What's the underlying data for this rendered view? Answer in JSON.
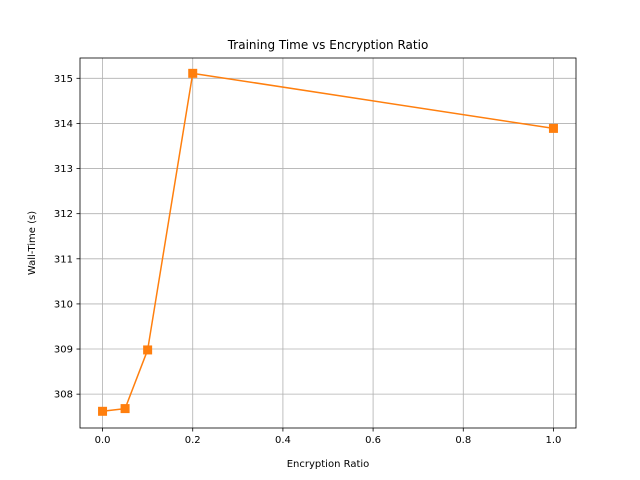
{
  "chart_data": {
    "type": "line",
    "title": "Training Time vs Encryption Ratio",
    "xlabel": "Encryption Ratio",
    "ylabel": "Wall-Time (s)",
    "xlim": [
      -0.05,
      1.05
    ],
    "ylim": [
      307.25,
      315.45
    ],
    "xticks": [
      0.0,
      0.2,
      0.4,
      0.6,
      0.8,
      1.0
    ],
    "xtick_labels": [
      "0.0",
      "0.2",
      "0.4",
      "0.6",
      "0.8",
      "1.0"
    ],
    "yticks": [
      308,
      309,
      310,
      311,
      312,
      313,
      314,
      315
    ],
    "ytick_labels": [
      "308",
      "309",
      "310",
      "311",
      "312",
      "313",
      "314",
      "315"
    ],
    "grid": true,
    "series": [
      {
        "color": "#ff7f0e",
        "marker": "square",
        "x": [
          0.0,
          0.05,
          0.1,
          0.2,
          1.0
        ],
        "y": [
          307.62,
          307.68,
          308.98,
          315.11,
          313.89
        ]
      }
    ]
  }
}
